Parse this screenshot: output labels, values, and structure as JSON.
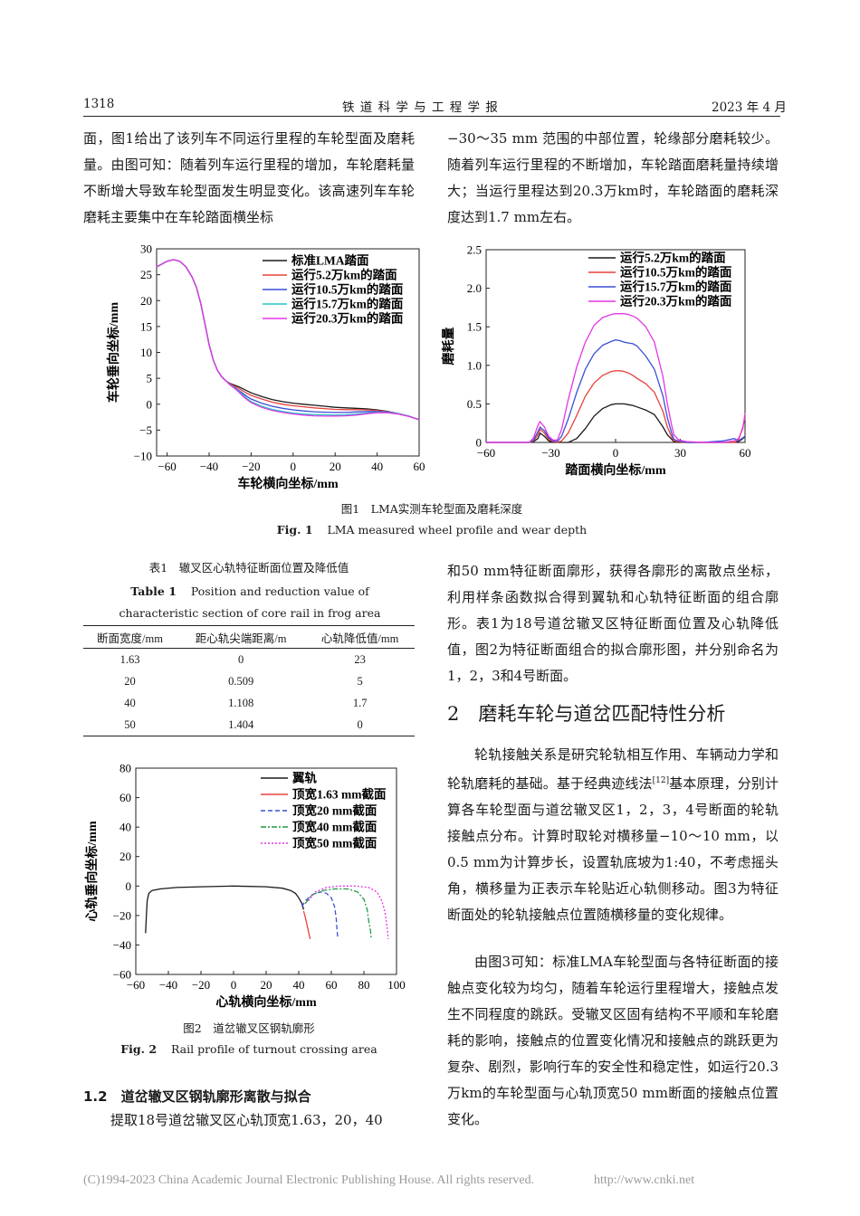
{
  "header": {
    "page_number": "1318",
    "journal": "铁 道 科 学 与 工 程 学 报",
    "date": "2023 年 4 月"
  },
  "left_top_paragraph": "面，图1给出了该列车不同运行里程的车轮型面及磨耗量。由图可知：随着列车运行里程的增加，车轮磨耗量不断增大导致车轮型面发生明显变化。该高速列车车轮磨耗主要集中在车轮踏面横坐标",
  "right_top_paragraph": "−30～35 mm 范围的中部位置，轮缘部分磨耗较少。随着列车运行里程的不断增加，车轮踏面磨耗量持续增大；当运行里程达到20.3万km时，车轮踏面的磨耗深度达到1.7 mm左右。",
  "fig1": {
    "caption_cn": "图1　LMA实测车轮型面及磨耗深度",
    "caption_en_label": "Fig. 1",
    "caption_en": "LMA measured wheel profile and wear depth"
  },
  "table1": {
    "title_cn": "表1　辙叉区心轨特征断面位置及降低值",
    "title_en_label": "Table 1",
    "title_en": "Position and reduction value of characteristic section of core rail in frog area",
    "headers": [
      "断面宽度/mm",
      "距心轨尖端距离/m",
      "心轨降低值/mm"
    ],
    "rows": [
      [
        "1.63",
        "0",
        "23"
      ],
      [
        "20",
        "0.509",
        "5"
      ],
      [
        "40",
        "1.108",
        "1.7"
      ],
      [
        "50",
        "1.404",
        "0"
      ]
    ]
  },
  "fig2": {
    "caption_cn": "图2　道岔辙叉区钢轨廓形",
    "caption_en_label": "Fig. 2",
    "caption_en": "Rail profile of turnout crossing area"
  },
  "right_para_1": "和50 mm特征断面廓形，获得各廓形的离散点坐标，利用样条函数拟合得到翼轨和心轨特征断面的组合廓形。表1为18号道岔辙叉区特征断面位置及心轨降低值，图2为特征断面组合的拟合廓形图，并分别命名为1，2，3和4号断面。",
  "section2_heading": "2　磨耗车轮与道岔匹配特性分析",
  "right_para_2a": "轮轨接触关系是研究轮轨相互作用、车辆动力学和轮轨磨耗的基础。基于经典迹线法",
  "right_para_2_ref": "[12]",
  "right_para_2b": "基本原理，分别计算各车轮型面与道岔辙叉区1，2，3，4号断面的轮轨接触点分布。计算时取轮对横移量−10～10 mm，以0.5 mm为计算步长，设置轨底坡为1:40，不考虑摇头角，横移量为正表示车轮贴近心轨侧移动。图3为特征断面处的轮轨接触点位置随横移量的变化规律。",
  "right_para_3": "由图3可知：标准LMA车轮型面与各特征断面的接触点变化较为均匀，随着车轮运行里程增大，接触点发生不同程度的跳跃。受辙叉区固有结构不平顺和车轮磨耗的影响，接触点的位置变化情况和接触点的跳跃更为复杂、剧烈，影响行车的安全性和稳定性，如运行20.3万km的车轮型面与心轨顶宽50 mm断面的接触点位置变化。",
  "section12_heading": "1.2　道岔辙叉区钢轨廓形离散与拟合",
  "left_bottom_paragraph": "提取18号道岔辙叉区心轨顶宽1.63，20，40",
  "footer": {
    "copyright": "(C)1994-2023 China Academic Journal Electronic Publishing House. All rights reserved.",
    "url": "http://www.cnki.net"
  },
  "chart_data": [
    {
      "type": "line",
      "xlabel": "车轮横向坐标/mm",
      "ylabel": "车轮垂向坐标/mm",
      "xlim": [
        -65,
        60
      ],
      "ylim": [
        -10,
        30
      ],
      "xticks": [
        -60,
        -40,
        -20,
        0,
        20,
        40,
        60
      ],
      "yticks": [
        -10,
        -5,
        0,
        5,
        10,
        15,
        20,
        25,
        30
      ],
      "legend_position": "top-right",
      "series": [
        {
          "name": "标准LMA踏面",
          "color": "#1a1a1a",
          "x": [
            -65,
            -60,
            -57,
            -54,
            -51,
            -48,
            -46,
            -44,
            -42,
            -40,
            -38,
            -36,
            -34,
            -32,
            -30,
            -28,
            -26,
            -24,
            -22,
            -20,
            -15,
            -10,
            -5,
            0,
            5,
            10,
            15,
            20,
            25,
            30,
            35,
            40,
            45,
            50,
            55,
            60
          ],
          "y": [
            26.5,
            27.6,
            27.9,
            27.6,
            26.5,
            24.5,
            22.5,
            19.5,
            15.5,
            11.5,
            8.5,
            6.5,
            5.3,
            4.5,
            4.0,
            3.7,
            3.4,
            3.0,
            2.6,
            2.2,
            1.5,
            0.9,
            0.5,
            0.2,
            0.0,
            -0.2,
            -0.4,
            -0.6,
            -0.7,
            -0.8,
            -0.9,
            -1.1,
            -1.4,
            -1.8,
            -2.3,
            -3.0
          ]
        },
        {
          "name": "运行5.2万km的踏面",
          "color": "#e8413c",
          "x": [
            -65,
            -60,
            -57,
            -54,
            -51,
            -48,
            -46,
            -44,
            -42,
            -40,
            -38,
            -36,
            -34,
            -32,
            -30,
            -28,
            -26,
            -24,
            -22,
            -20,
            -15,
            -10,
            -5,
            0,
            5,
            10,
            15,
            20,
            25,
            30,
            35,
            40,
            45,
            50,
            55,
            60
          ],
          "y": [
            26.5,
            27.6,
            27.9,
            27.6,
            26.5,
            24.5,
            22.5,
            19.5,
            15.5,
            11.5,
            8.5,
            6.5,
            5.3,
            4.5,
            3.9,
            3.5,
            3.1,
            2.6,
            2.1,
            1.7,
            1.0,
            0.4,
            0.0,
            -0.3,
            -0.5,
            -0.7,
            -0.85,
            -1.0,
            -1.05,
            -1.05,
            -1.1,
            -1.2,
            -1.45,
            -1.8,
            -2.3,
            -3.0
          ]
        },
        {
          "name": "运行10.5万km的踏面",
          "color": "#3a4fd8",
          "x": [
            -65,
            -60,
            -57,
            -54,
            -51,
            -48,
            -46,
            -44,
            -42,
            -40,
            -38,
            -36,
            -34,
            -32,
            -30,
            -28,
            -26,
            -24,
            -22,
            -20,
            -15,
            -10,
            -5,
            0,
            5,
            10,
            15,
            20,
            25,
            30,
            35,
            40,
            45,
            50,
            55,
            60
          ],
          "y": [
            26.5,
            27.6,
            27.9,
            27.6,
            26.5,
            24.5,
            22.5,
            19.5,
            15.5,
            11.5,
            8.5,
            6.5,
            5.3,
            4.5,
            3.8,
            3.3,
            2.7,
            2.1,
            1.5,
            1.0,
            0.2,
            -0.4,
            -0.8,
            -1.1,
            -1.3,
            -1.45,
            -1.55,
            -1.6,
            -1.6,
            -1.5,
            -1.4,
            -1.4,
            -1.5,
            -1.8,
            -2.3,
            -3.0
          ]
        },
        {
          "name": "运行15.7万km的踏面",
          "color": "#22c6c6",
          "x": [
            -65,
            -60,
            -57,
            -54,
            -51,
            -48,
            -46,
            -44,
            -42,
            -40,
            -38,
            -36,
            -34,
            -32,
            -30,
            -28,
            -26,
            -24,
            -22,
            -20,
            -15,
            -10,
            -5,
            0,
            5,
            10,
            15,
            20,
            25,
            30,
            35,
            40,
            45,
            50,
            55,
            60
          ],
          "y": [
            26.5,
            27.6,
            27.9,
            27.6,
            26.5,
            24.5,
            22.5,
            19.5,
            15.5,
            11.5,
            8.5,
            6.5,
            5.3,
            4.5,
            3.8,
            3.2,
            2.5,
            1.8,
            1.1,
            0.5,
            -0.4,
            -1.0,
            -1.4,
            -1.7,
            -1.9,
            -2.0,
            -2.05,
            -2.1,
            -2.05,
            -1.9,
            -1.7,
            -1.55,
            -1.6,
            -1.85,
            -2.3,
            -3.0
          ]
        },
        {
          "name": "运行20.3万km的踏面",
          "color": "#e535e5",
          "x": [
            -65,
            -60,
            -57,
            -54,
            -51,
            -48,
            -46,
            -44,
            -42,
            -40,
            -38,
            -36,
            -34,
            -32,
            -30,
            -28,
            -26,
            -24,
            -22,
            -20,
            -15,
            -10,
            -5,
            0,
            5,
            10,
            15,
            20,
            25,
            30,
            35,
            40,
            45,
            50,
            55,
            60
          ],
          "y": [
            26.5,
            27.6,
            27.9,
            27.6,
            26.5,
            24.5,
            22.5,
            19.5,
            15.5,
            11.5,
            8.5,
            6.5,
            5.3,
            4.5,
            3.7,
            3.1,
            2.4,
            1.6,
            0.9,
            0.3,
            -0.6,
            -1.2,
            -1.6,
            -1.9,
            -2.1,
            -2.25,
            -2.3,
            -2.3,
            -2.25,
            -2.1,
            -1.85,
            -1.65,
            -1.65,
            -1.9,
            -2.35,
            -3.0
          ]
        }
      ]
    },
    {
      "type": "line",
      "xlabel": "踏面横向坐标/mm",
      "ylabel": "磨耗量",
      "xlim": [
        -60,
        60
      ],
      "ylim": [
        0,
        2.5
      ],
      "xticks": [
        -60,
        -30,
        0,
        30,
        60
      ],
      "yticks": [
        0,
        0.5,
        1.0,
        1.5,
        2.0,
        2.5
      ],
      "legend_position": "top-right",
      "series": [
        {
          "name": "运行5.2万km的踏面",
          "color": "#1a1a1a",
          "x": [
            -60,
            -40,
            -38,
            -36,
            -35,
            -33,
            -31,
            -29,
            -27,
            -25,
            -22,
            -18,
            -14,
            -10,
            -6,
            -2,
            0,
            2,
            4,
            6,
            8,
            10,
            14,
            18,
            22,
            24,
            26,
            27,
            29,
            31,
            33,
            40,
            50,
            55,
            57,
            59,
            60
          ],
          "y": [
            0,
            0,
            0.01,
            0.05,
            0.12,
            0.08,
            0.02,
            0,
            0,
            0,
            0,
            0.05,
            0.18,
            0.34,
            0.44,
            0.49,
            0.5,
            0.5,
            0.5,
            0.49,
            0.48,
            0.46,
            0.42,
            0.36,
            0.2,
            0.1,
            0.04,
            0.01,
            0,
            0,
            0,
            0,
            0,
            0,
            0.01,
            0.05,
            0.08
          ]
        },
        {
          "name": "运行10.5万km的踏面",
          "color": "#e8413c",
          "x": [
            -60,
            -40,
            -38,
            -36,
            -35,
            -33,
            -31,
            -29,
            -27,
            -25,
            -22,
            -18,
            -14,
            -10,
            -6,
            -2,
            0,
            2,
            4,
            6,
            8,
            10,
            14,
            18,
            22,
            24,
            26,
            27,
            29,
            31,
            33,
            40,
            50,
            55,
            57,
            59,
            60
          ],
          "y": [
            0,
            0,
            0.02,
            0.1,
            0.17,
            0.12,
            0.04,
            0.01,
            0,
            0.02,
            0.12,
            0.35,
            0.6,
            0.77,
            0.87,
            0.92,
            0.93,
            0.93,
            0.92,
            0.9,
            0.87,
            0.83,
            0.76,
            0.65,
            0.4,
            0.2,
            0.07,
            0.02,
            0.01,
            0,
            0,
            0,
            0,
            0,
            0.03,
            0.2,
            0.32
          ]
        },
        {
          "name": "运行15.7万km的踏面",
          "color": "#3a4fd8",
          "x": [
            -60,
            -40,
            -38,
            -36,
            -35,
            -33,
            -31,
            -29,
            -27,
            -25,
            -22,
            -18,
            -14,
            -10,
            -6,
            -2,
            0,
            2,
            4,
            6,
            8,
            10,
            14,
            18,
            22,
            24,
            26,
            27,
            29,
            31,
            33,
            40,
            50,
            55,
            57,
            59,
            60
          ],
          "y": [
            0,
            0,
            0.03,
            0.14,
            0.2,
            0.15,
            0.06,
            0.02,
            0.01,
            0.08,
            0.3,
            0.65,
            0.95,
            1.15,
            1.26,
            1.31,
            1.33,
            1.32,
            1.3,
            1.29,
            1.28,
            1.25,
            1.12,
            0.95,
            0.6,
            0.32,
            0.12,
            0.04,
            0.02,
            0.01,
            0,
            0,
            0.02,
            0.05,
            0.02,
            0.06,
            0.08
          ]
        },
        {
          "name": "运行20.3万km的踏面",
          "color": "#e535e5",
          "x": [
            -60,
            -40,
            -38,
            -36,
            -35,
            -33,
            -31,
            -29,
            -27,
            -25,
            -22,
            -18,
            -14,
            -10,
            -6,
            -2,
            0,
            2,
            4,
            6,
            8,
            10,
            14,
            18,
            22,
            24,
            26,
            27,
            29,
            31,
            33,
            40,
            50,
            55,
            57,
            59,
            60
          ],
          "y": [
            0,
            0,
            0.06,
            0.22,
            0.27,
            0.2,
            0.08,
            0.03,
            0.03,
            0.17,
            0.55,
            0.98,
            1.3,
            1.52,
            1.62,
            1.66,
            1.67,
            1.67,
            1.67,
            1.66,
            1.64,
            1.61,
            1.5,
            1.3,
            0.85,
            0.5,
            0.22,
            0.1,
            0.04,
            0.02,
            0.01,
            0,
            0,
            0.02,
            0.05,
            0.18,
            0.38
          ]
        }
      ]
    },
    {
      "type": "line",
      "xlabel": "心轨横向坐标/mm",
      "ylabel": "心轨垂向坐标/mm",
      "xlim": [
        -60,
        100
      ],
      "ylim": [
        -60,
        80
      ],
      "xticks": [
        -60,
        -40,
        -20,
        0,
        20,
        40,
        60,
        80,
        100
      ],
      "yticks": [
        -60,
        -40,
        -20,
        0,
        20,
        40,
        60,
        80
      ],
      "legend_position": "top-right",
      "series": [
        {
          "name": "翼轨",
          "color": "#1a1a1a",
          "x": [
            -54,
            -53.5,
            -53,
            -52,
            -50,
            -45,
            -35,
            -20,
            0,
            20,
            30,
            35,
            38,
            40,
            42,
            43
          ],
          "y": [
            -32,
            -20,
            -10,
            -5,
            -3,
            -2,
            -1,
            -0.5,
            0,
            -0.5,
            -1.5,
            -3,
            -5,
            -8,
            -12,
            -16
          ]
        },
        {
          "name": "顶宽1.63 mm截面",
          "color": "#e8413c",
          "x": [
            43,
            44,
            45,
            46,
            47
          ],
          "y": [
            -17,
            -21,
            -26,
            -31,
            -36
          ]
        },
        {
          "name": "顶宽20 mm截面",
          "color": "#3a4fd8",
          "x": [
            42,
            44,
            47,
            50,
            54,
            57,
            60,
            62,
            63,
            63.5,
            64
          ],
          "y": [
            -14,
            -10,
            -7,
            -5,
            -4,
            -5,
            -8,
            -14,
            -22,
            -30,
            -36
          ]
        },
        {
          "name": "顶宽40 mm截面",
          "color": "#229944",
          "x": [
            44,
            48,
            55,
            62,
            70,
            76,
            80,
            82,
            83,
            84,
            84.5
          ],
          "y": [
            -12,
            -6,
            -3,
            -2,
            -2,
            -4,
            -9,
            -16,
            -24,
            -30,
            -36
          ]
        },
        {
          "name": "顶宽50 mm截面",
          "color": "#e535e5",
          "x": [
            46,
            50,
            57,
            65,
            75,
            83,
            88,
            91,
            93,
            94,
            95
          ],
          "y": [
            -10,
            -4,
            -1,
            0,
            0,
            -1,
            -4,
            -10,
            -18,
            -26,
            -36
          ]
        }
      ]
    }
  ]
}
